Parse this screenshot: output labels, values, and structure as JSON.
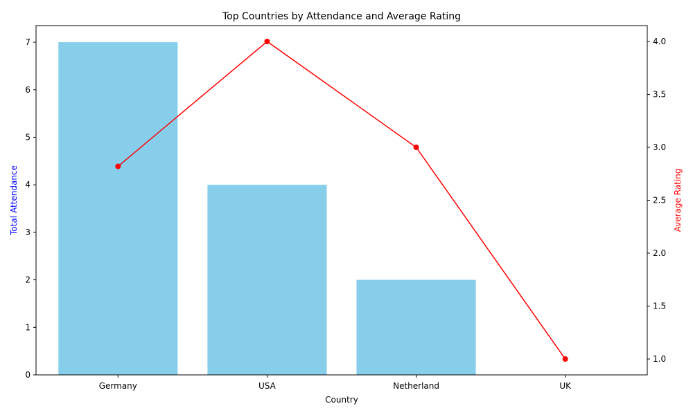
{
  "chart_data": {
    "type": "bar",
    "title": "Top Countries by Attendance and Average Rating",
    "xlabel": "Country",
    "categories": [
      "Germany",
      "USA",
      "Netherland",
      "UK"
    ],
    "series": [
      {
        "name": "",
        "kind": "bar",
        "axis": "left",
        "values": [
          7,
          4,
          2,
          0
        ],
        "color": "#87ceeb"
      },
      {
        "name": "",
        "kind": "line",
        "axis": "right",
        "values": [
          2.82,
          4.0,
          3.0,
          1.0
        ],
        "color": "#ff0000"
      }
    ],
    "y_left": {
      "label": "Total Attendance",
      "label_color": "#0000ff",
      "ylim": [
        0,
        7.35
      ],
      "ticks": [
        0,
        1,
        2,
        3,
        4,
        5,
        6,
        7
      ],
      "tick_labels": [
        "0",
        "1",
        "2",
        "3",
        "4",
        "5",
        "6",
        "7"
      ]
    },
    "y_right": {
      "label": "Average Rating",
      "label_color": "#ff0000",
      "ylim": [
        0.85,
        4.15
      ],
      "ticks": [
        1.0,
        1.5,
        2.0,
        2.5,
        3.0,
        3.5,
        4.0
      ],
      "tick_labels": [
        "1.0",
        "1.5",
        "2.0",
        "2.5",
        "3.0",
        "3.5",
        "4.0"
      ]
    },
    "grid": false,
    "legend": "none"
  }
}
